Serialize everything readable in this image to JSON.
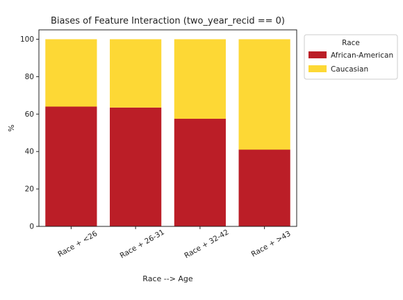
{
  "chart_data": {
    "type": "bar",
    "stacked": true,
    "title": "Biases of Feature Interaction (two_year_recid == 0)",
    "xlabel": "Race --> Age",
    "ylabel": "%",
    "ylim": [
      0,
      105
    ],
    "yticks": [
      0,
      20,
      40,
      60,
      80,
      100
    ],
    "categories": [
      "Race + <26",
      "Race + 26-31",
      "Race + 32-42",
      "Race + >43"
    ],
    "series": [
      {
        "name": "African-American",
        "color": "#bb1e27",
        "values": [
          64,
          63.5,
          57.5,
          41
        ]
      },
      {
        "name": "Caucasian",
        "color": "#fdd835",
        "values": [
          36,
          36.5,
          42.5,
          59
        ]
      }
    ],
    "legend": {
      "title": "Race",
      "position": "outside-right"
    },
    "grid": false
  }
}
